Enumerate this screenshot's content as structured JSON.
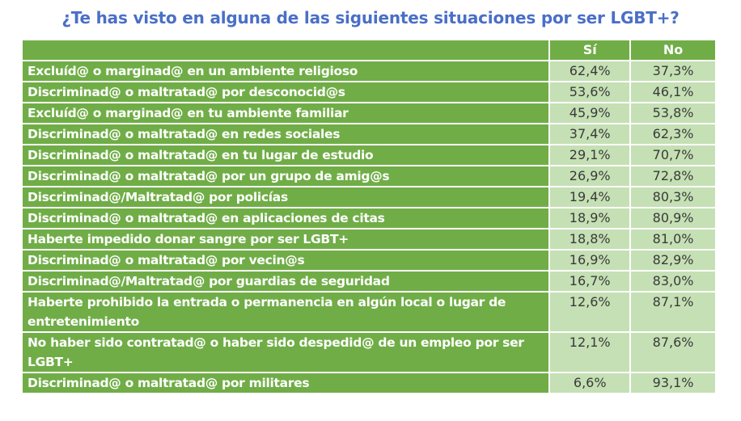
{
  "chart_data": {
    "type": "table",
    "title": "¿Te has visto en alguna de las siguientes situaciones por ser LGBT+?",
    "columns": [
      "",
      "Sí",
      "No"
    ],
    "rows": [
      {
        "label": "Excluíd@ o marginad@ en un ambiente religioso",
        "si": "62,4%",
        "no": "37,3%"
      },
      {
        "label": "Discriminad@ o maltratad@ por desconocid@s",
        "si": "53,6%",
        "no": "46,1%"
      },
      {
        "label": "Excluíd@ o marginad@ en tu ambiente familiar",
        "si": "45,9%",
        "no": "53,8%"
      },
      {
        "label": "Discriminad@ o maltratad@ en redes sociales",
        "si": "37,4%",
        "no": "62,3%"
      },
      {
        "label": "Discriminad@ o maltratad@ en tu lugar de estudio",
        "si": "29,1%",
        "no": "70,7%"
      },
      {
        "label": "Discriminad@ o maltratad@ por un grupo de amig@s",
        "si": "26,9%",
        "no": "72,8%"
      },
      {
        "label": "Discriminad@/Maltratad@ por policías",
        "si": "19,4%",
        "no": "80,3%"
      },
      {
        "label": "Discriminad@ o maltratad@ en aplicaciones de citas",
        "si": "18,9%",
        "no": "80,9%"
      },
      {
        "label": "Haberte impedido donar sangre por ser LGBT+",
        "si": "18,8%",
        "no": "81,0%"
      },
      {
        "label": "Discriminad@ o maltratad@ por vecin@s",
        "si": "16,9%",
        "no": "82,9%"
      },
      {
        "label": "Discriminad@/Maltratad@ por guardias de seguridad",
        "si": "16,7%",
        "no": "83,0%"
      },
      {
        "label": "Haberte prohibido la entrada o permanencia en algún local o lugar de entretenimiento",
        "si": "12,6%",
        "no": "87,1%"
      },
      {
        "label": "No haber sido contratad@ o haber sido despedid@ de un empleo por ser LGBT+",
        "si": "12,1%",
        "no": "87,6%"
      },
      {
        "label": "Discriminad@ o maltratad@ por militares",
        "si": "6,6%",
        "no": "93,1%"
      }
    ],
    "colors": {
      "header": "#70AD47",
      "cell": "#C5E0B4",
      "title": "#4A6FC7"
    }
  }
}
